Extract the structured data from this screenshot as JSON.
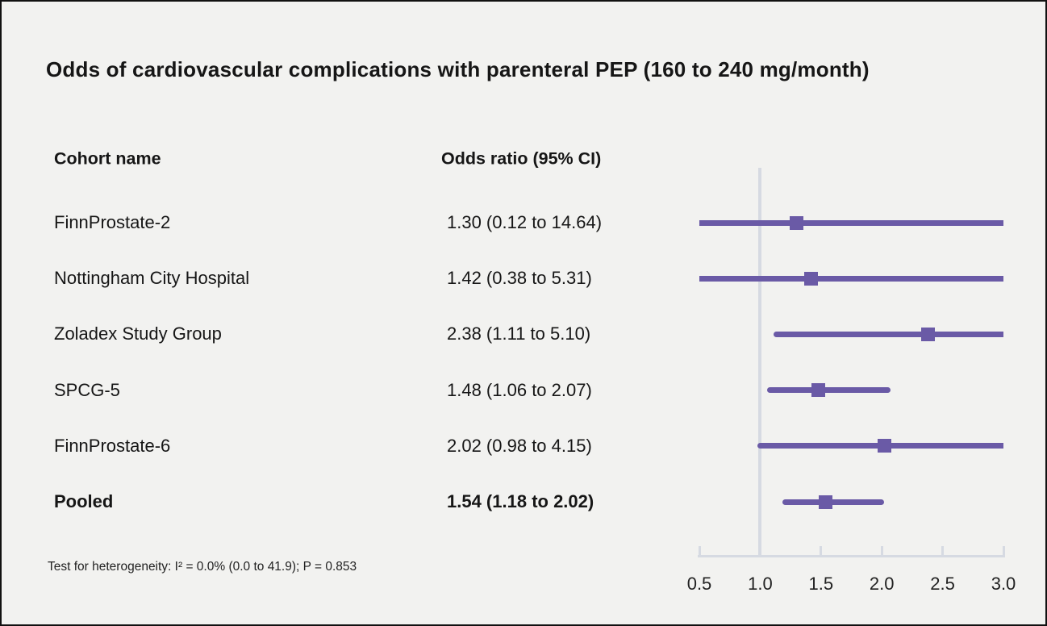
{
  "title": "Odds of cardiovascular complications with parenteral PEP (160 to 240 mg/month)",
  "columns": {
    "cohort": "Cohort name",
    "odds_ratio": "Odds ratio (95% CI)"
  },
  "footer": "Test for heterogeneity: I² = 0.0% (0.0 to 41.9); P = 0.853",
  "colors": {
    "marker": "#6A5AA6",
    "ci_line": "#6A5AA6",
    "axis": "#D6DAE2",
    "background": "#F2F2F0",
    "text": "#161616"
  },
  "chart_data": {
    "type": "forest",
    "title": "Odds of cardiovascular complications with parenteral PEP (160 to 240 mg/month)",
    "xlabel": "Odds ratio (95% CI)",
    "xlim": [
      0.5,
      3.0
    ],
    "x_ticks": [
      "0.5",
      "1.0",
      "1.5",
      "2.0",
      "2.5",
      "3.0"
    ],
    "x_tick_values": [
      0.5,
      1.0,
      1.5,
      2.0,
      2.5,
      3.0
    ],
    "reference_line": 1.0,
    "grid": false,
    "rows": [
      {
        "name": "FinnProstate-2",
        "or_label": "1.30 (0.12 to 14.64)",
        "or": 1.3,
        "ci_low": 0.12,
        "ci_high": 14.64,
        "bold": false
      },
      {
        "name": "Nottingham City Hospital",
        "or_label": "1.42 (0.38 to 5.31)",
        "or": 1.42,
        "ci_low": 0.38,
        "ci_high": 5.31,
        "bold": false
      },
      {
        "name": "Zoladex Study Group",
        "or_label": "2.38 (1.11 to 5.10)",
        "or": 2.38,
        "ci_low": 1.11,
        "ci_high": 5.1,
        "bold": false
      },
      {
        "name": "SPCG-5",
        "or_label": "1.48 (1.06 to 2.07)",
        "or": 1.48,
        "ci_low": 1.06,
        "ci_high": 2.07,
        "bold": false
      },
      {
        "name": "FinnProstate-6",
        "or_label": "2.02 (0.98 to 4.15)",
        "or": 2.02,
        "ci_low": 0.98,
        "ci_high": 4.15,
        "bold": false
      },
      {
        "name": "Pooled",
        "or_label": "1.54 (1.18 to 2.02)",
        "or": 1.54,
        "ci_low": 1.18,
        "ci_high": 2.02,
        "bold": true
      }
    ]
  }
}
